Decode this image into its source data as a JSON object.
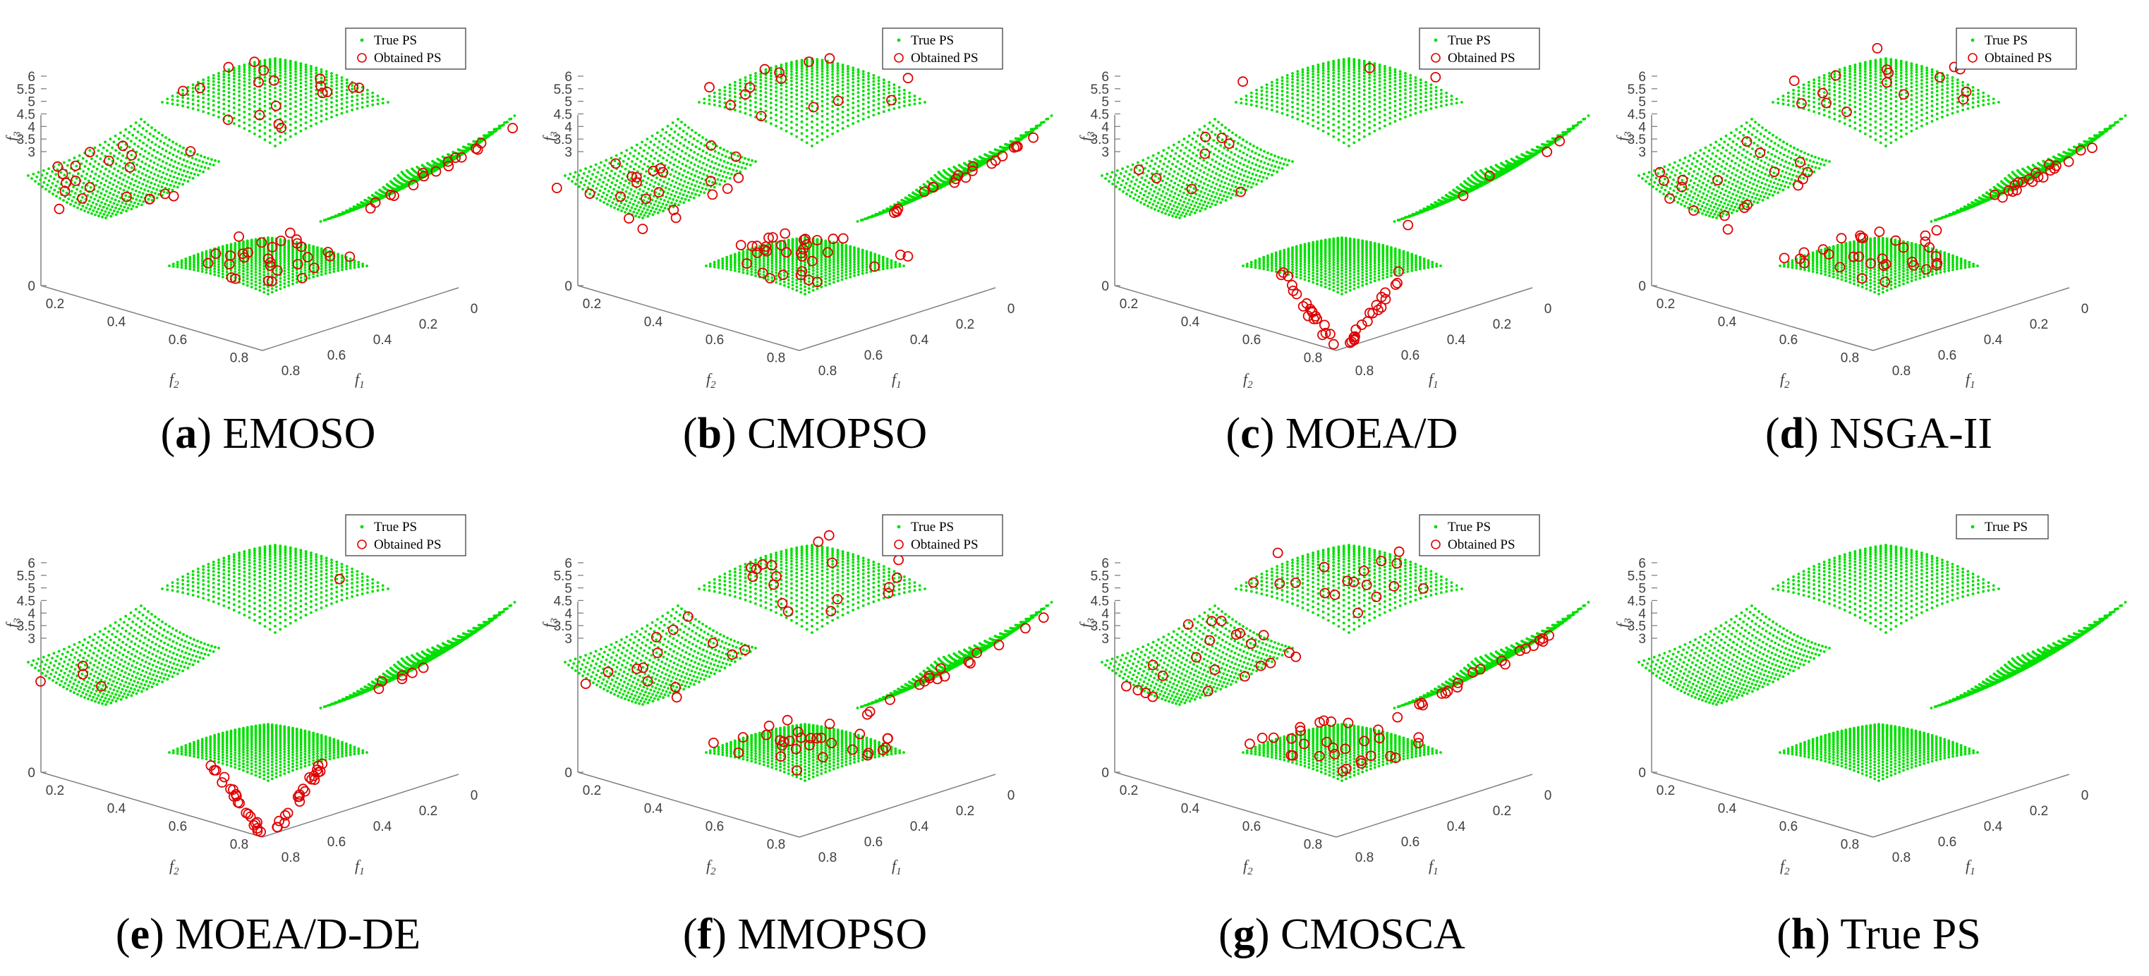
{
  "figure": {
    "panels": [
      {
        "letter": "a",
        "method": "EMOSO",
        "legend": [
          "True PS",
          "Obtained PS"
        ],
        "obtained": {
          "top": 18,
          "left": 20,
          "right": 16,
          "bottom": 30,
          "bottom_focus": "spread"
        }
      },
      {
        "letter": "b",
        "method": "CMOPSO",
        "legend": [
          "True PS",
          "Obtained PS"
        ],
        "obtained": {
          "top": 14,
          "left": 22,
          "right": 20,
          "bottom": 34,
          "bottom_focus": "spread"
        }
      },
      {
        "letter": "c",
        "method": "MOEA/D",
        "legend": [
          "True PS",
          "Obtained PS"
        ],
        "obtained": {
          "top": 3,
          "left": 8,
          "right": 5,
          "bottom": 40,
          "bottom_focus": "tip"
        }
      },
      {
        "letter": "d",
        "method": "NSGA-II",
        "legend": [
          "True PS",
          "Obtained PS"
        ],
        "obtained": {
          "top": 16,
          "left": 18,
          "right": 22,
          "bottom": 30,
          "bottom_focus": "spread"
        }
      },
      {
        "letter": "e",
        "method": "MOEA/D-DE",
        "legend": [
          "True PS",
          "Obtained PS"
        ],
        "obtained": {
          "top": 1,
          "left": 4,
          "right": 6,
          "bottom": 42,
          "bottom_focus": "tip"
        }
      },
      {
        "letter": "f",
        "method": "MMOPSO",
        "legend": [
          "True PS",
          "Obtained PS"
        ],
        "obtained": {
          "top": 18,
          "left": 14,
          "right": 16,
          "bottom": 30,
          "bottom_focus": "spread"
        }
      },
      {
        "letter": "g",
        "method": "CMOSCA",
        "legend": [
          "True PS",
          "Obtained PS"
        ],
        "obtained": {
          "top": 18,
          "left": 22,
          "right": 20,
          "bottom": 30,
          "bottom_focus": "spread"
        }
      },
      {
        "letter": "h",
        "method": "True PS",
        "legend": [
          "True PS"
        ],
        "obtained": {
          "top": 0,
          "left": 0,
          "right": 0,
          "bottom": 0,
          "bottom_focus": "none"
        }
      }
    ]
  },
  "chart_data": {
    "type": "scatter",
    "projection": "3d",
    "axes": {
      "f1": {
        "label": "f1",
        "ticks": [
          "0",
          "0.2",
          "0.4",
          "0.6",
          "0.8"
        ]
      },
      "f2": {
        "label": "f2",
        "ticks": [
          "0.2",
          "0.4",
          "0.6",
          "0.8"
        ]
      },
      "f3": {
        "label": "f3",
        "range": [
          0,
          6
        ],
        "ticks": [
          "0",
          "3",
          "3.5",
          "4",
          "4.5",
          "5",
          "5.5",
          "6"
        ]
      }
    },
    "series": [
      {
        "name": "True PS",
        "marker": "dot",
        "color": "#00e000"
      },
      {
        "name": "Obtained PS",
        "marker": "circle",
        "color": "#e00000"
      }
    ]
  }
}
